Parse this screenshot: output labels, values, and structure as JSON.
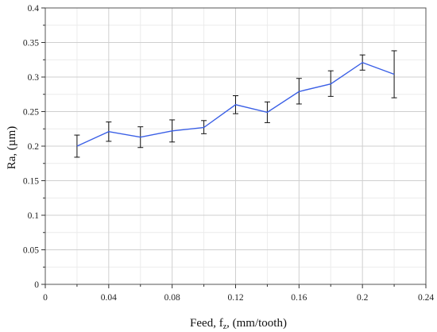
{
  "chart_data": {
    "type": "line",
    "xlabel": "Feed, f",
    "xlabel_sub": "z",
    "xlabel_rest": ", (mm/tooth)",
    "ylabel": "Ra, (µm)",
    "xlim": [
      0,
      0.24
    ],
    "ylim": [
      0,
      0.4
    ],
    "x_ticks": [
      "0",
      "0.04",
      "0.08",
      "0.12",
      "0.16",
      "0.2",
      "0.24"
    ],
    "y_ticks": [
      "0",
      "0.05",
      "0.1",
      "0.15",
      "0.2",
      "0.25",
      "0.3",
      "0.35",
      "0.4"
    ],
    "x_tick_values": [
      0,
      0.04,
      0.08,
      0.12,
      0.16,
      0.2,
      0.24
    ],
    "y_tick_values": [
      0,
      0.05,
      0.1,
      0.15,
      0.2,
      0.25,
      0.3,
      0.35,
      0.4
    ],
    "grid": true,
    "line_color": "#3a5fe6",
    "series": [
      {
        "x": [
          0.02,
          0.04,
          0.06,
          0.08,
          0.1,
          0.12,
          0.14,
          0.16,
          0.18,
          0.2,
          0.22
        ],
        "y": [
          0.2,
          0.221,
          0.213,
          0.222,
          0.227,
          0.26,
          0.249,
          0.279,
          0.29,
          0.321,
          0.304
        ],
        "err_low": [
          0.184,
          0.207,
          0.198,
          0.206,
          0.218,
          0.247,
          0.234,
          0.261,
          0.272,
          0.31,
          0.27
        ],
        "err_high": [
          0.216,
          0.235,
          0.228,
          0.238,
          0.237,
          0.273,
          0.264,
          0.298,
          0.309,
          0.332,
          0.338
        ]
      }
    ]
  }
}
